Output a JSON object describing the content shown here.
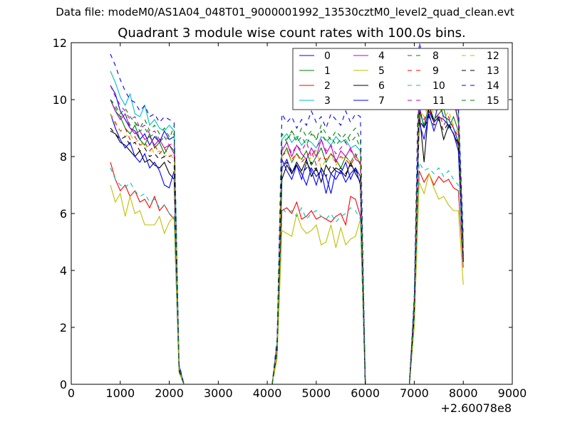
{
  "chart_data": {
    "type": "line",
    "suptitle": "Data file: modeM0/AS1A04_048T01_9000001992_13530cztM0_level2_quad_clean.evt",
    "title": "Quadrant 3 module wise count rates with 100.0s bins.",
    "xlabel": "",
    "ylabel": "",
    "xlim": [
      0,
      9000
    ],
    "ylim": [
      0,
      12
    ],
    "x_offset_label": "+2.60078e8",
    "xticks": [
      "0",
      "1000",
      "2000",
      "3000",
      "4000",
      "5000",
      "6000",
      "7000",
      "8000",
      "9000"
    ],
    "yticks": [
      "0",
      "2",
      "4",
      "6",
      "8",
      "10",
      "12"
    ],
    "xtick_values": [
      0,
      1000,
      2000,
      3000,
      4000,
      5000,
      6000,
      7000,
      8000,
      9000
    ],
    "ytick_values": [
      0,
      2,
      4,
      6,
      8,
      10,
      12
    ],
    "grid": false,
    "legend_placement": "top-right",
    "legend_columns": 4,
    "x_start": 800,
    "x_step": 100,
    "series": [
      {
        "name": "0",
        "color": "#0000ff",
        "dashed": false,
        "values": [
          10.5,
          10.2,
          9.6,
          9.3,
          9.0,
          8.9,
          8.6,
          8.8,
          8.4,
          8.7,
          8.5,
          8.9,
          8.6,
          8.7,
          0.6,
          0,
          0,
          0,
          0,
          0,
          0,
          0,
          0,
          0,
          0,
          0,
          0,
          0,
          0,
          0,
          0,
          0,
          0,
          0,
          1.4,
          7.6,
          7.9,
          7.4,
          7.7,
          7.2,
          7.8,
          7.5,
          7.0,
          7.6,
          7.3,
          6.7,
          7.5,
          7.4,
          7.8,
          7.2,
          7.6,
          7.3,
          0,
          0,
          0,
          0,
          0,
          0,
          0,
          0,
          0,
          0,
          2.8,
          9.8,
          9.0,
          9.6,
          9.2,
          9.9,
          9.4,
          9.3,
          9.0,
          8.5,
          4.6
        ]
      },
      {
        "name": "1",
        "color": "#008000",
        "dashed": false,
        "values": [
          10.0,
          9.6,
          9.4,
          9.0,
          8.8,
          9.1,
          8.6,
          8.4,
          8.8,
          8.3,
          8.5,
          8.1,
          8.4,
          8.2,
          0.5,
          0,
          0,
          0,
          0,
          0,
          0,
          0,
          0,
          0,
          0,
          0,
          0,
          0,
          0,
          0,
          0,
          0,
          0,
          0,
          1.2,
          8.0,
          8.3,
          7.8,
          8.1,
          7.9,
          8.2,
          7.7,
          8.0,
          8.3,
          7.8,
          8.1,
          7.9,
          7.6,
          8.0,
          7.8,
          8.1,
          7.7,
          0,
          0,
          0,
          0,
          0,
          0,
          0,
          0,
          0,
          0,
          2.6,
          9.6,
          9.1,
          9.8,
          9.3,
          9.5,
          9.7,
          9.0,
          9.4,
          8.9,
          4.4
        ]
      },
      {
        "name": "2",
        "color": "#ff0000",
        "dashed": false,
        "values": [
          7.8,
          7.2,
          6.8,
          7.0,
          6.6,
          6.8,
          6.4,
          6.5,
          6.2,
          6.6,
          6.1,
          6.3,
          6.0,
          5.8,
          0.5,
          0,
          0,
          0,
          0,
          0,
          0,
          0,
          0,
          0,
          0,
          0,
          0,
          0,
          0,
          0,
          0,
          0,
          0,
          0,
          1.1,
          6.1,
          6.2,
          6.0,
          6.4,
          5.8,
          5.9,
          6.1,
          5.8,
          5.9,
          5.8,
          5.7,
          5.9,
          6.0,
          5.6,
          6.6,
          6.5,
          5.9,
          0,
          0,
          0,
          0,
          0,
          0,
          0,
          0,
          0,
          0,
          2.2,
          7.5,
          7.1,
          7.4,
          7.0,
          7.3,
          7.1,
          7.2,
          6.9,
          6.8,
          4.1
        ]
      },
      {
        "name": "3",
        "color": "#00bfbf",
        "dashed": false,
        "values": [
          11.0,
          10.6,
          10.1,
          9.8,
          10.2,
          9.5,
          9.4,
          9.8,
          9.1,
          9.3,
          9.0,
          8.9,
          9.1,
          8.9,
          0.7,
          0,
          0,
          0,
          0,
          0,
          0,
          0,
          0,
          0,
          0,
          0,
          0,
          0,
          0,
          0,
          0,
          0,
          0,
          0,
          1.5,
          8.6,
          8.8,
          8.5,
          8.7,
          8.4,
          8.6,
          8.5,
          8.3,
          8.7,
          8.6,
          8.4,
          8.7,
          8.5,
          8.6,
          8.3,
          8.4,
          8.2,
          0,
          0,
          0,
          0,
          0,
          0,
          0,
          0,
          0,
          0,
          3.0,
          10.8,
          10.5,
          11.0,
          10.6,
          10.9,
          10.4,
          10.7,
          10.2,
          9.6,
          5.0
        ]
      },
      {
        "name": "4",
        "color": "#bf00bf",
        "dashed": false,
        "values": [
          10.0,
          9.6,
          9.3,
          9.5,
          9.0,
          8.8,
          8.9,
          8.6,
          8.7,
          8.4,
          8.6,
          8.3,
          8.4,
          8.1,
          0.6,
          0,
          0,
          0,
          0,
          0,
          0,
          0,
          0,
          0,
          0,
          0,
          0,
          0,
          0,
          0,
          0,
          0,
          0,
          0,
          1.3,
          8.2,
          8.5,
          8.0,
          8.4,
          8.1,
          7.9,
          8.3,
          8.0,
          8.6,
          8.1,
          8.4,
          7.8,
          8.2,
          8.0,
          8.3,
          7.9,
          7.8,
          0,
          0,
          0,
          0,
          0,
          0,
          0,
          0,
          0,
          0,
          2.9,
          10.5,
          10.1,
          10.6,
          10.3,
          10.8,
          10.2,
          10.4,
          10.0,
          9.2,
          4.8
        ]
      },
      {
        "name": "5",
        "color": "#bfbf00",
        "dashed": false,
        "values": [
          7.0,
          6.4,
          6.7,
          5.9,
          6.6,
          6.0,
          6.1,
          5.6,
          5.6,
          5.6,
          5.9,
          5.3,
          5.7,
          5.9,
          0.4,
          0,
          0,
          0,
          0,
          0,
          0,
          0,
          0,
          0,
          0,
          0,
          0,
          0,
          0,
          0,
          0,
          0,
          0,
          0,
          0.9,
          5.4,
          5.3,
          5.2,
          6.0,
          5.5,
          5.3,
          5.4,
          5.6,
          4.9,
          5.0,
          5.6,
          4.8,
          5.5,
          4.9,
          5.1,
          5.2,
          5.8,
          0,
          0,
          0,
          0,
          0,
          0,
          0,
          0,
          0,
          0,
          2.0,
          7.1,
          6.7,
          7.4,
          6.9,
          6.5,
          6.6,
          6.3,
          6.1,
          6.1,
          3.5
        ]
      },
      {
        "name": "6",
        "color": "#000000",
        "dashed": false,
        "values": [
          8.9,
          8.8,
          8.5,
          8.4,
          8.2,
          8.0,
          8.2,
          7.8,
          7.9,
          7.7,
          7.6,
          7.8,
          7.4,
          7.2,
          0.5,
          0,
          0,
          0,
          0,
          0,
          0,
          0,
          0,
          0,
          0,
          0,
          0,
          0,
          0,
          0,
          0,
          0,
          0,
          0,
          1.2,
          7.2,
          7.7,
          7.4,
          7.8,
          7.5,
          7.9,
          7.3,
          7.6,
          7.1,
          7.7,
          7.4,
          7.6,
          7.5,
          7.3,
          7.8,
          7.4,
          7.1,
          0,
          0,
          0,
          0,
          0,
          0,
          0,
          0,
          0,
          0,
          2.5,
          9.6,
          7.8,
          9.8,
          9.2,
          9.4,
          8.6,
          9.1,
          8.8,
          8.4,
          4.3
        ]
      },
      {
        "name": "7",
        "color": "#0000ff",
        "dashed": false,
        "values": [
          9.5,
          9.0,
          8.6,
          8.3,
          8.5,
          8.0,
          7.8,
          8.1,
          7.6,
          7.8,
          7.5,
          7.0,
          6.9,
          7.5,
          0.5,
          0,
          0,
          0,
          0,
          0,
          0,
          0,
          0,
          0,
          0,
          0,
          0,
          0,
          0,
          0,
          0,
          0,
          0,
          0,
          1.3,
          7.9,
          7.5,
          7.2,
          7.7,
          7.4,
          7.0,
          7.6,
          7.3,
          7.5,
          6.7,
          7.4,
          7.2,
          7.5,
          7.1,
          7.4,
          7.6,
          7.0,
          0,
          0,
          0,
          0,
          0,
          0,
          0,
          0,
          0,
          0,
          2.7,
          9.2,
          8.6,
          9.5,
          8.9,
          9.4,
          9.3,
          9.1,
          8.8,
          8.2,
          4.5
        ]
      },
      {
        "name": "8",
        "color": "#008000",
        "dashed": true,
        "values": [
          10.0,
          9.8,
          9.5,
          9.7,
          9.4,
          9.2,
          9.0,
          9.3,
          8.9,
          9.1,
          8.8,
          9.0,
          8.7,
          8.8,
          0.6,
          0,
          0,
          0,
          0,
          0,
          0,
          0,
          0,
          0,
          0,
          0,
          0,
          0,
          0,
          0,
          0,
          0,
          0,
          0,
          1.4,
          8.8,
          8.6,
          8.9,
          8.5,
          8.7,
          8.4,
          8.8,
          8.6,
          8.9,
          8.5,
          8.7,
          8.4,
          8.6,
          8.8,
          8.5,
          8.7,
          8.3,
          0,
          0,
          0,
          0,
          0,
          0,
          0,
          0,
          0,
          0,
          2.9,
          10.7,
          10.3,
          10.6,
          10.2,
          10.8,
          10.5,
          10.1,
          10.4,
          9.7,
          4.9
        ]
      },
      {
        "name": "9",
        "color": "#ff0000",
        "dashed": true,
        "values": [
          9.5,
          9.2,
          8.9,
          9.0,
          8.6,
          8.7,
          8.4,
          8.5,
          8.2,
          8.4,
          8.1,
          8.3,
          8.0,
          8.1,
          0.5,
          0,
          0,
          0,
          0,
          0,
          0,
          0,
          0,
          0,
          0,
          0,
          0,
          0,
          0,
          0,
          0,
          0,
          0,
          0,
          1.3,
          8.0,
          8.2,
          7.9,
          8.1,
          7.8,
          8.0,
          8.2,
          7.7,
          8.0,
          7.9,
          8.1,
          7.8,
          8.0,
          7.9,
          7.7,
          8.0,
          7.8,
          0,
          0,
          0,
          0,
          0,
          0,
          0,
          0,
          0,
          0,
          2.6,
          9.6,
          9.3,
          9.7,
          9.2,
          9.5,
          9.1,
          9.4,
          9.0,
          8.7,
          4.4
        ]
      },
      {
        "name": "10",
        "color": "#00bfbf",
        "dashed": true,
        "values": [
          7.6,
          7.2,
          7.0,
          6.9,
          7.1,
          6.8,
          6.6,
          6.7,
          6.4,
          6.5,
          6.2,
          6.3,
          6.0,
          5.9,
          0.5,
          0,
          0,
          0,
          0,
          0,
          0,
          0,
          0,
          0,
          0,
          0,
          0,
          0,
          0,
          0,
          0,
          0,
          0,
          0,
          1.1,
          6.2,
          6.0,
          6.1,
          5.9,
          6.2,
          5.8,
          6.0,
          6.1,
          5.9,
          5.8,
          6.0,
          5.7,
          5.9,
          6.0,
          6.2,
          6.1,
          5.8,
          0,
          0,
          0,
          0,
          0,
          0,
          0,
          0,
          0,
          0,
          2.3,
          7.8,
          7.5,
          7.6,
          7.4,
          7.6,
          7.3,
          7.5,
          7.2,
          7.0,
          4.2
        ]
      },
      {
        "name": "11",
        "color": "#bf00bf",
        "dashed": true,
        "values": [
          10.5,
          10.1,
          9.8,
          9.6,
          9.3,
          9.4,
          9.0,
          9.1,
          8.8,
          8.9,
          8.6,
          8.7,
          8.4,
          8.5,
          0.6,
          0,
          0,
          0,
          0,
          0,
          0,
          0,
          0,
          0,
          0,
          0,
          0,
          0,
          0,
          0,
          0,
          0,
          0,
          0,
          1.4,
          8.3,
          8.5,
          8.1,
          8.4,
          8.2,
          8.5,
          8.0,
          8.3,
          8.6,
          8.2,
          8.4,
          8.1,
          8.3,
          8.5,
          8.2,
          8.0,
          8.2,
          0,
          0,
          0,
          0,
          0,
          0,
          0,
          0,
          0,
          0,
          2.9,
          10.6,
          10.2,
          10.8,
          10.4,
          10.7,
          10.3,
          10.5,
          10.0,
          9.4,
          4.7
        ]
      },
      {
        "name": "12",
        "color": "#bfbf00",
        "dashed": true,
        "values": [
          9.5,
          9.1,
          8.9,
          8.7,
          8.8,
          8.5,
          8.6,
          8.3,
          8.4,
          8.1,
          8.2,
          8.0,
          8.1,
          7.9,
          0.5,
          0,
          0,
          0,
          0,
          0,
          0,
          0,
          0,
          0,
          0,
          0,
          0,
          0,
          0,
          0,
          0,
          0,
          0,
          0,
          1.2,
          8.0,
          8.2,
          7.8,
          8.1,
          7.9,
          7.7,
          8.0,
          8.2,
          7.6,
          7.9,
          8.1,
          7.7,
          7.9,
          8.0,
          7.8,
          8.1,
          7.7,
          0,
          0,
          0,
          0,
          0,
          0,
          0,
          0,
          0,
          0,
          2.7,
          9.7,
          9.4,
          9.9,
          9.5,
          9.8,
          9.3,
          9.6,
          9.1,
          8.8,
          4.5
        ]
      },
      {
        "name": "13",
        "color": "#000000",
        "dashed": true,
        "values": [
          9.0,
          8.8,
          8.6,
          8.7,
          8.4,
          8.5,
          8.2,
          8.3,
          8.0,
          8.1,
          7.9,
          8.0,
          7.8,
          7.7,
          0.5,
          0,
          0,
          0,
          0,
          0,
          0,
          0,
          0,
          0,
          0,
          0,
          0,
          0,
          0,
          0,
          0,
          0,
          0,
          0,
          1.2,
          7.6,
          7.8,
          7.5,
          7.7,
          7.4,
          7.6,
          7.8,
          7.5,
          7.6,
          7.3,
          7.7,
          7.5,
          7.6,
          7.4,
          7.7,
          7.5,
          7.3,
          0,
          0,
          0,
          0,
          0,
          0,
          0,
          0,
          0,
          0,
          2.5,
          9.3,
          9.0,
          9.4,
          9.1,
          9.3,
          8.9,
          9.2,
          8.8,
          8.5,
          4.3
        ]
      },
      {
        "name": "14",
        "color": "#0000ff",
        "dashed": true,
        "values": [
          11.6,
          11.2,
          10.7,
          10.3,
          10.0,
          9.9,
          9.6,
          9.8,
          9.4,
          9.5,
          9.2,
          9.4,
          9.3,
          9.2,
          0.7,
          0,
          0,
          0,
          0,
          0,
          0,
          0,
          0,
          0,
          0,
          0,
          0,
          0,
          0,
          0,
          0,
          0,
          0,
          0,
          1.6,
          9.5,
          9.2,
          9.4,
          9.0,
          9.3,
          9.1,
          9.6,
          9.2,
          9.4,
          9.0,
          9.5,
          9.3,
          9.1,
          9.6,
          9.2,
          9.5,
          9.4,
          0,
          0,
          0,
          0,
          0,
          0,
          0,
          0,
          0,
          0,
          3.1,
          12.0,
          11.4,
          11.2,
          10.8,
          11.0,
          10.6,
          10.9,
          10.5,
          9.8,
          5.2
        ]
      },
      {
        "name": "15",
        "color": "#008000",
        "dashed": true,
        "values": [
          10.0,
          9.7,
          9.4,
          9.5,
          9.1,
          9.2,
          8.9,
          9.0,
          8.7,
          8.8,
          8.5,
          8.7,
          8.6,
          9.1,
          0.6,
          0,
          0,
          0,
          0,
          0,
          0,
          0,
          0,
          0,
          0,
          0,
          0,
          0,
          0,
          0,
          0,
          0,
          0,
          0,
          1.4,
          8.8,
          8.5,
          8.9,
          8.6,
          9.0,
          8.7,
          8.9,
          8.6,
          9.1,
          8.8,
          8.6,
          8.9,
          8.7,
          8.5,
          8.8,
          9.0,
          8.6,
          0,
          0,
          0,
          0,
          0,
          0,
          0,
          0,
          0,
          0,
          2.8,
          10.5,
          10.2,
          10.6,
          10.3,
          10.7,
          10.1,
          10.4,
          10.0,
          9.3,
          4.8
        ]
      }
    ]
  }
}
